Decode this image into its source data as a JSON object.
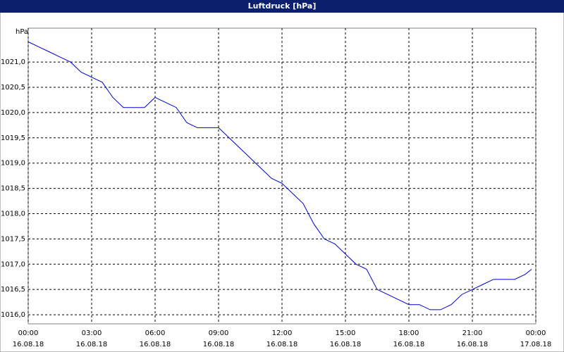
{
  "chart_data": {
    "type": "line",
    "title": "Luftdruck [hPa]",
    "y_label": "hPa",
    "x": [
      0,
      0.5,
      1,
      1.5,
      2,
      2.5,
      3,
      3.5,
      4,
      4.5,
      5,
      5.5,
      6,
      6.5,
      7,
      7.5,
      8,
      8.5,
      9,
      9.5,
      10,
      10.5,
      11,
      11.5,
      12,
      12.5,
      13,
      13.5,
      14,
      14.5,
      15,
      15.5,
      16,
      16.5,
      17,
      17.5,
      18,
      18.5,
      19,
      19.5,
      20,
      20.5,
      21,
      21.5,
      22,
      22.5,
      23,
      23.5,
      23.8
    ],
    "series": [
      {
        "color": "#0000cc",
        "values": [
          1021.4,
          1021.3,
          1021.2,
          1021.1,
          1021.0,
          1020.8,
          1020.7,
          1020.6,
          1020.3,
          1020.1,
          1020.1,
          1020.1,
          1020.3,
          1020.2,
          1020.1,
          1019.8,
          1019.7,
          1019.7,
          1019.7,
          1019.5,
          1019.3,
          1019.1,
          1018.9,
          1018.7,
          1018.6,
          1018.4,
          1018.2,
          1017.8,
          1017.5,
          1017.4,
          1017.2,
          1017.0,
          1016.9,
          1016.5,
          1016.4,
          1016.3,
          1016.2,
          1016.2,
          1016.1,
          1016.1,
          1016.2,
          1016.4,
          1016.5,
          1016.6,
          1016.7,
          1016.7,
          1016.7,
          1016.8,
          1016.9
        ]
      }
    ],
    "xlim": [
      0,
      24
    ],
    "xticks": [
      {
        "value": 0,
        "label": [
          "00:00",
          "16.08.18"
        ]
      },
      {
        "value": 3,
        "label": [
          "03:00",
          "16.08.18"
        ]
      },
      {
        "value": 6,
        "label": [
          "06:00",
          "16.08.18"
        ]
      },
      {
        "value": 9,
        "label": [
          "09:00",
          "16.08.18"
        ]
      },
      {
        "value": 12,
        "label": [
          "12:00",
          "16.08.18"
        ]
      },
      {
        "value": 15,
        "label": [
          "15:00",
          "16.08.18"
        ]
      },
      {
        "value": 18,
        "label": [
          "18:00",
          "16.08.18"
        ]
      },
      {
        "value": 21,
        "label": [
          "21:00",
          "16.08.18"
        ]
      },
      {
        "value": 24,
        "label": [
          "00:00",
          "17.08.18"
        ]
      }
    ],
    "ylim": [
      1015.82,
      1021.67
    ],
    "yticks": [
      {
        "value": 1016,
        "label": "1016,0"
      },
      {
        "value": 1016.5,
        "label": "1016,5"
      },
      {
        "value": 1017,
        "label": "1017,0"
      },
      {
        "value": 1017.5,
        "label": "1017,5"
      },
      {
        "value": 1018,
        "label": "1018,0"
      },
      {
        "value": 1018.5,
        "label": "1018,5"
      },
      {
        "value": 1019,
        "label": "1019,0"
      },
      {
        "value": 1019.5,
        "label": "1019,5"
      },
      {
        "value": 1020,
        "label": "1020,0"
      },
      {
        "value": 1020.5,
        "label": "1020,5"
      },
      {
        "value": 1021,
        "label": "1021,0"
      }
    ],
    "grid": true
  }
}
